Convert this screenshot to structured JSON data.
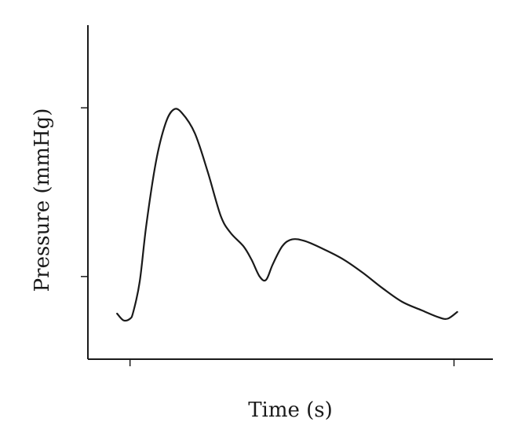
{
  "chart_data": {
    "type": "line",
    "xlabel": "Time (s)",
    "ylabel": "Pressure (mmHg)",
    "xlim": [
      -0.13,
      1.12
    ],
    "ylim": [
      -0.49,
      1.49
    ],
    "xticks": [
      0,
      1
    ],
    "yticks": [
      0,
      1
    ],
    "grid": false,
    "series": [
      {
        "points": [
          [
            -0.04,
            -0.22
          ],
          [
            -0.02,
            -0.26
          ],
          [
            0.0,
            -0.25
          ],
          [
            0.01,
            -0.21
          ],
          [
            0.03,
            -0.03
          ],
          [
            0.05,
            0.3
          ],
          [
            0.08,
            0.68
          ],
          [
            0.11,
            0.91
          ],
          [
            0.135,
            0.99
          ],
          [
            0.16,
            0.97
          ],
          [
            0.2,
            0.85
          ],
          [
            0.24,
            0.62
          ],
          [
            0.28,
            0.36
          ],
          [
            0.31,
            0.26
          ],
          [
            0.35,
            0.18
          ],
          [
            0.375,
            0.1
          ],
          [
            0.4,
            0.0
          ],
          [
            0.42,
            -0.02
          ],
          [
            0.44,
            0.07
          ],
          [
            0.47,
            0.18
          ],
          [
            0.5,
            0.22
          ],
          [
            0.54,
            0.21
          ],
          [
            0.6,
            0.16
          ],
          [
            0.66,
            0.1
          ],
          [
            0.72,
            0.02
          ],
          [
            0.78,
            -0.07
          ],
          [
            0.84,
            -0.15
          ],
          [
            0.9,
            -0.2
          ],
          [
            0.95,
            -0.24
          ],
          [
            0.98,
            -0.25
          ],
          [
            1.01,
            -0.21
          ]
        ]
      }
    ]
  }
}
